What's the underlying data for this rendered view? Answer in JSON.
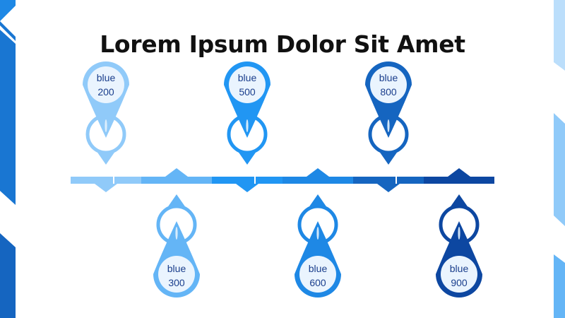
{
  "title": "Lorem Ipsum Dolor Sit Amet",
  "colors": {
    "label_text": "#1a3e8c",
    "blue200": "#90caf9",
    "blue300": "#64b5f6",
    "blue500": "#2196f3",
    "blue600": "#1e88e5",
    "blue800": "#1565c0",
    "blue900": "#0d47a1"
  },
  "milestones": [
    {
      "line1": "blue",
      "line2": "200",
      "position": "top",
      "color": "#90caf9",
      "ring": "#90caf9"
    },
    {
      "line1": "blue",
      "line2": "300",
      "position": "bottom",
      "color": "#64b5f6",
      "ring": "#64b5f6"
    },
    {
      "line1": "blue",
      "line2": "500",
      "position": "top",
      "color": "#2196f3",
      "ring": "#2196f3"
    },
    {
      "line1": "blue",
      "line2": "600",
      "position": "bottom",
      "color": "#1e88e5",
      "ring": "#1e88e5"
    },
    {
      "line1": "blue",
      "line2": "800",
      "position": "top",
      "color": "#1565c0",
      "ring": "#1565c0"
    },
    {
      "line1": "blue",
      "line2": "900",
      "position": "bottom",
      "color": "#0d47a1",
      "ring": "#0d47a1"
    }
  ]
}
